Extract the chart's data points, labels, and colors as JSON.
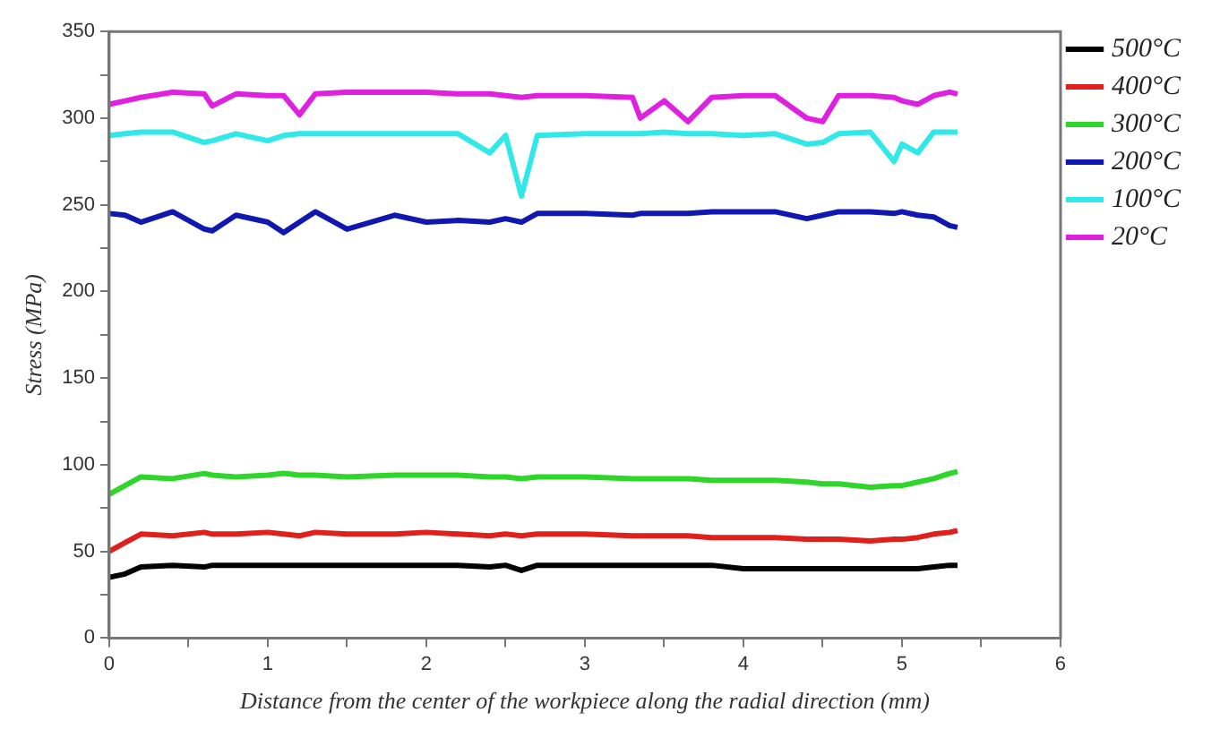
{
  "chart_data": {
    "type": "line",
    "xlabel": "Distance from the center of the workpiece along the radial direction (mm)",
    "ylabel": "Stress (MPa)",
    "x": [
      0,
      0.1,
      0.2,
      0.4,
      0.6,
      0.65,
      0.8,
      1.0,
      1.1,
      1.2,
      1.3,
      1.5,
      1.8,
      2.0,
      2.2,
      2.4,
      2.5,
      2.6,
      2.7,
      3.0,
      3.3,
      3.35,
      3.5,
      3.65,
      3.8,
      4.0,
      4.2,
      4.4,
      4.5,
      4.6,
      4.8,
      4.95,
      5.0,
      5.1,
      5.2,
      5.3,
      5.35
    ],
    "series": [
      {
        "name": "500°C",
        "color": "#000000",
        "values": [
          35,
          37,
          41,
          42,
          41,
          42,
          42,
          42,
          42,
          42,
          42,
          42,
          42,
          42,
          42,
          41,
          42,
          39,
          42,
          42,
          42,
          42,
          42,
          42,
          42,
          40,
          40,
          40,
          40,
          40,
          40,
          40,
          40,
          40,
          41,
          42,
          42
        ]
      },
      {
        "name": "400°C",
        "color": "#e0201c",
        "values": [
          50,
          55,
          60,
          59,
          61,
          60,
          60,
          61,
          60,
          59,
          61,
          60,
          60,
          61,
          60,
          59,
          60,
          59,
          60,
          60,
          59,
          59,
          59,
          59,
          58,
          58,
          58,
          57,
          57,
          57,
          56,
          57,
          57,
          58,
          60,
          61,
          62
        ]
      },
      {
        "name": "300°C",
        "color": "#2ed62a",
        "values": [
          83,
          88,
          93,
          92,
          95,
          94,
          93,
          94,
          95,
          94,
          94,
          93,
          94,
          94,
          94,
          93,
          93,
          92,
          93,
          93,
          92,
          92,
          92,
          92,
          91,
          91,
          91,
          90,
          89,
          89,
          87,
          88,
          88,
          90,
          92,
          95,
          96
        ]
      },
      {
        "name": "200°C",
        "color": "#1018b0",
        "values": [
          245,
          244,
          240,
          246,
          236,
          235,
          244,
          240,
          234,
          240,
          246,
          236,
          244,
          240,
          241,
          240,
          242,
          240,
          245,
          245,
          244,
          245,
          245,
          245,
          246,
          246,
          246,
          242,
          244,
          246,
          246,
          245,
          246,
          244,
          243,
          238,
          237
        ]
      },
      {
        "name": "100°C",
        "color": "#30e8e8",
        "values": [
          290,
          291,
          292,
          292,
          286,
          287,
          291,
          287,
          290,
          291,
          291,
          291,
          291,
          291,
          291,
          280,
          290,
          255,
          290,
          291,
          291,
          291,
          292,
          291,
          291,
          290,
          291,
          285,
          286,
          291,
          292,
          275,
          285,
          280,
          292,
          292,
          292
        ]
      },
      {
        "name": "20°C",
        "color": "#e020e0",
        "values": [
          308,
          310,
          312,
          315,
          314,
          307,
          314,
          313,
          313,
          302,
          314,
          315,
          315,
          315,
          314,
          314,
          313,
          312,
          313,
          313,
          312,
          300,
          310,
          298,
          312,
          313,
          313,
          300,
          298,
          313,
          313,
          312,
          310,
          308,
          313,
          315,
          314
        ]
      }
    ],
    "xlim": [
      0,
      6
    ],
    "xticks": [
      0,
      {
        "value": 0.5,
        "label": null
      },
      1,
      {
        "value": 1.5,
        "label": null
      },
      2,
      {
        "value": 2.5,
        "label": null
      },
      3,
      {
        "value": 3.5,
        "label": null
      },
      4,
      {
        "value": 4.5,
        "label": null
      },
      5,
      {
        "value": 5.5,
        "label": null
      },
      6
    ],
    "ylim": [
      0,
      350
    ],
    "yticks": [
      0,
      {
        "value": 25,
        "label": null
      },
      50,
      {
        "value": 75,
        "label": null
      },
      100,
      {
        "value": 125,
        "label": null
      },
      150,
      {
        "value": 175,
        "label": null
      },
      200,
      {
        "value": 225,
        "label": null
      },
      250,
      {
        "value": 275,
        "label": null
      },
      300,
      {
        "value": 325,
        "label": null
      },
      350
    ],
    "grid": false,
    "legend": "top right",
    "marker": "none",
    "line_style": "solid"
  }
}
